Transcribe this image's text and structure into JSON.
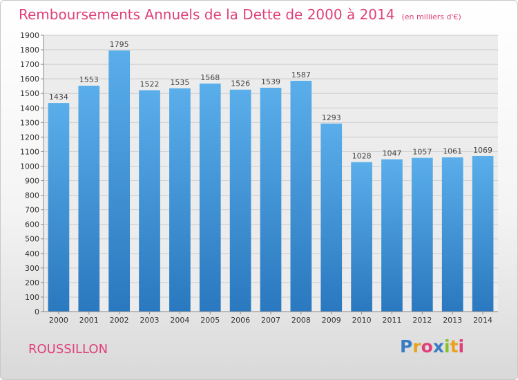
{
  "header": {
    "title": "Remboursements Annuels de la Dette de 2000 à 2014",
    "unit": "(en milliers d'€)"
  },
  "footer": {
    "commune": "ROUSSILLON",
    "brand_letters": [
      {
        "ch": "P",
        "color": "#3a7cc4"
      },
      {
        "ch": "r",
        "color": "#e8a21c"
      },
      {
        "ch": "o",
        "color": "#e0407a"
      },
      {
        "ch": "x",
        "color": "#3a7cc4"
      },
      {
        "ch": "i",
        "color": "#8bbf2a"
      },
      {
        "ch": "t",
        "color": "#e8a21c"
      },
      {
        "ch": "i",
        "color": "#e0407a"
      }
    ]
  },
  "colors": {
    "bar_top": "#5aaeea",
    "bar_bottom": "#2a78bf",
    "grid": "#cccccc",
    "accent": "#e0407a"
  },
  "chart_data": {
    "type": "bar",
    "categories": [
      "2000",
      "2001",
      "2002",
      "2003",
      "2004",
      "2005",
      "2006",
      "2007",
      "2008",
      "2009",
      "2010",
      "2011",
      "2012",
      "2013",
      "2014"
    ],
    "values": [
      1434,
      1553,
      1795,
      1522,
      1535,
      1568,
      1526,
      1539,
      1587,
      1293,
      1028,
      1047,
      1057,
      1061,
      1069
    ],
    "title": "Remboursements Annuels de la Dette de 2000 à 2014",
    "ylim": [
      0,
      1900
    ],
    "ytick_step": 100,
    "grid": true
  }
}
